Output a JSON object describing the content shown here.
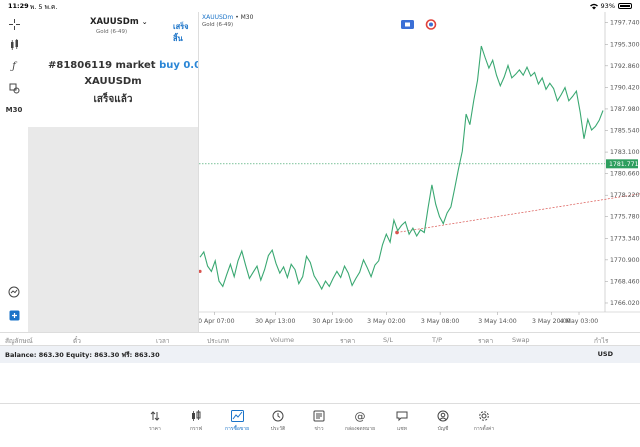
{
  "status": {
    "time": "11:29",
    "date": "พ. 5 พ.ค.",
    "battery": "93%"
  },
  "order_panel": {
    "symbol": "XAUUSDm",
    "symbol_sub": "Gold (6-49)",
    "done_label": "เสร็จสิ้น",
    "order_line1_prefix": "#81806119 market ",
    "order_line1_action": "buy 0.03",
    "order_line2": "XAUUSDm",
    "order_line3": "เสร็จแล้ว"
  },
  "left_toolbar": {
    "timeframe": "M30"
  },
  "chart": {
    "symbol": "XAUUSDm",
    "title_suffix": " • M30",
    "subtitle": "Gold (6-49)",
    "current_price_label": "1781.771"
  },
  "chart_data": {
    "type": "line",
    "y_ticks": [
      "1797.740",
      "1795.300",
      "1792.860",
      "1790.420",
      "1787.980",
      "1785.540",
      "1783.100",
      "1780.660",
      "1778.220",
      "1775.780",
      "1773.340",
      "1770.900",
      "1768.460",
      "1766.020"
    ],
    "x_ticks": [
      "30 Apr 07:00",
      "30 Apr 13:00",
      "30 Apr 19:00",
      "3 May 02:00",
      "3 May 08:00",
      "3 May 14:00",
      "3 May 20:00",
      "4 May 03:00"
    ],
    "ylim": [
      1765.0,
      1798.5
    ],
    "current_price": 1781.771,
    "trend_line": {
      "from": 1774.0,
      "to": 1778.4
    },
    "series": [
      {
        "values": [
          1771.2,
          1771.8,
          1770.2,
          1769.6,
          1770.8,
          1768.5,
          1767.9,
          1769.2,
          1770.4,
          1769.0,
          1770.8,
          1771.9,
          1770.3,
          1768.8,
          1769.5,
          1770.2,
          1768.6,
          1769.8,
          1771.4,
          1772.0,
          1770.5,
          1769.4,
          1770.1,
          1768.9,
          1770.4,
          1769.8,
          1768.2,
          1769.0,
          1771.3,
          1770.6,
          1769.1,
          1768.4,
          1767.6,
          1768.5,
          1767.9,
          1768.8,
          1769.6,
          1768.9,
          1770.2,
          1769.4,
          1768.0,
          1768.8,
          1769.5,
          1770.9,
          1770.0,
          1769.0,
          1770.3,
          1770.8,
          1772.6,
          1773.8,
          1772.9,
          1775.4,
          1774.2,
          1774.8,
          1775.2,
          1773.8,
          1774.5,
          1773.6,
          1774.3,
          1774.0,
          1776.8,
          1779.4,
          1777.2,
          1775.8,
          1775.0,
          1776.2,
          1776.9,
          1779.0,
          1781.2,
          1783.2,
          1787.4,
          1786.2,
          1788.9,
          1791.2,
          1795.1,
          1793.8,
          1792.6,
          1793.5,
          1791.8,
          1790.6,
          1791.6,
          1792.9,
          1791.5,
          1791.9,
          1792.4,
          1791.8,
          1792.7,
          1791.7,
          1792.1,
          1790.8,
          1791.5,
          1790.2,
          1790.9,
          1790.3,
          1788.9,
          1789.6,
          1790.4,
          1788.9,
          1789.4,
          1790.0,
          1787.6,
          1784.6,
          1786.8,
          1785.6,
          1786.0,
          1786.7,
          1787.8
        ]
      }
    ]
  },
  "table_header": {
    "symbol": "สัญลักษณ์",
    "ticket": "ตั๋ว",
    "time": "เวลา",
    "type": "ประเภท",
    "volume": "Volume",
    "price": "ราคา",
    "sl": "S/L",
    "tp": "T/P",
    "price2": "ราคา",
    "swap": "Swap",
    "profit": "กำไร"
  },
  "balance": {
    "text": "Balance: 863.30 Equity: 863.30 ฟรี: 863.30",
    "currency": "USD"
  },
  "tabs": [
    {
      "label": "ราคา",
      "icon": "updown-icon"
    },
    {
      "label": "กราฟ",
      "icon": "candles-icon"
    },
    {
      "label": "การซื้อขาย",
      "icon": "trade-chart-icon"
    },
    {
      "label": "ประวัติ",
      "icon": "history-icon"
    },
    {
      "label": "ข่าว",
      "icon": "news-icon"
    },
    {
      "label": "กล่องจดหมาย",
      "icon": "mail-icon"
    },
    {
      "label": "แชท",
      "icon": "chat-icon"
    },
    {
      "label": "บัญชี",
      "icon": "account-icon"
    },
    {
      "label": "การตั้งค่า",
      "icon": "gear-icon"
    }
  ],
  "colors": {
    "accent": "#1a73c8",
    "line": "#3aa872",
    "price_line": "#2e9e5e",
    "trend": "#d9534f"
  }
}
